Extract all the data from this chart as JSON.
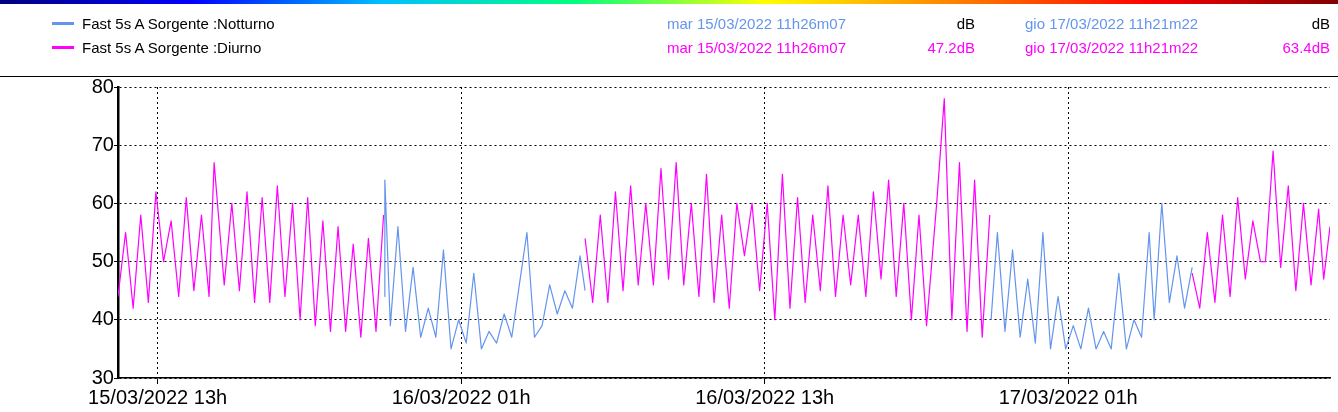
{
  "chart_data": {
    "type": "line",
    "ylim": [
      30,
      80
    ],
    "yticks": [
      30,
      40,
      50,
      60,
      70,
      80
    ],
    "xlim": [
      "2022-03-15T11:26",
      "2022-03-17T11:21"
    ],
    "xticks": [
      {
        "value": "2022-03-15T13:00",
        "label": "15/03/2022 13h"
      },
      {
        "value": "2022-03-16T01:00",
        "label": "16/03/2022 01h"
      },
      {
        "value": "2022-03-16T13:00",
        "label": "16/03/2022 13h"
      },
      {
        "value": "2022-03-17T01:00",
        "label": "17/03/2022 01h"
      }
    ],
    "grid": true,
    "legend": "top",
    "marker": "none",
    "line_style": "solid",
    "annotations": [
      "mar 15/03/2022 11h26m07",
      "dB",
      "gio 17/03/2022 11h21m22",
      "dB",
      "mar 15/03/2022 11h26m07",
      "47.2dB",
      "gio 17/03/2022 11h21m22",
      "63.4dB"
    ],
    "series": [
      {
        "name": "Fast 5s  A  Sorgente :Notturno",
        "color": "#6495ed",
        "x": [
          "2022-03-15T21:58",
          "2022-03-15T21:59",
          "2022-03-15T22:12",
          "2022-03-15T22:30",
          "2022-03-15T22:48",
          "2022-03-15T23:06",
          "2022-03-15T23:24",
          "2022-03-15T23:42",
          "2022-03-16T00:00",
          "2022-03-16T00:18",
          "2022-03-16T00:36",
          "2022-03-16T00:54",
          "2022-03-16T01:12",
          "2022-03-16T01:30",
          "2022-03-16T01:48",
          "2022-03-16T02:06",
          "2022-03-16T02:24",
          "2022-03-16T02:42",
          "2022-03-16T03:00",
          "2022-03-16T03:18",
          "2022-03-16T03:36",
          "2022-03-16T03:54",
          "2022-03-16T04:12",
          "2022-03-16T04:30",
          "2022-03-16T04:48",
          "2022-03-16T05:06",
          "2022-03-16T05:24",
          "2022-03-16T05:42",
          "2022-03-16T05:54",
          "2022-03-16T14:00",
          "2022-03-16T21:57",
          "2022-03-16T22:12",
          "2022-03-16T22:30",
          "2022-03-16T22:48",
          "2022-03-16T23:06",
          "2022-03-16T23:24",
          "2022-03-16T23:42",
          "2022-03-17T00:00",
          "2022-03-17T00:18",
          "2022-03-17T00:36",
          "2022-03-17T00:54",
          "2022-03-17T01:12",
          "2022-03-17T01:30",
          "2022-03-17T01:48",
          "2022-03-17T02:06",
          "2022-03-17T02:24",
          "2022-03-17T02:42",
          "2022-03-17T03:00",
          "2022-03-17T03:18",
          "2022-03-17T03:36",
          "2022-03-17T03:54",
          "2022-03-17T04:12",
          "2022-03-17T04:24",
          "2022-03-17T04:42",
          "2022-03-17T05:00",
          "2022-03-17T05:18",
          "2022-03-17T05:36",
          "2022-03-17T05:54"
        ],
        "values": [
          44,
          64,
          39,
          56,
          38,
          49,
          37,
          42,
          37,
          52,
          35,
          40,
          36,
          48,
          35,
          38,
          36,
          41,
          37,
          46,
          55,
          37,
          39,
          46,
          41,
          45,
          42,
          51,
          45,
          null,
          40,
          55,
          38,
          52,
          37,
          47,
          36,
          55,
          35,
          44,
          35,
          39,
          35,
          42,
          35,
          38,
          35,
          48,
          35,
          40,
          37,
          55,
          40,
          60,
          43,
          51,
          42,
          49
        ]
      },
      {
        "name": "Fast 5s  A  Sorgente :Diurno",
        "color": "#ff00ff",
        "x": [
          "2022-03-15T11:26",
          "2022-03-15T11:44",
          "2022-03-15T12:02",
          "2022-03-15T12:20",
          "2022-03-15T12:38",
          "2022-03-15T12:56",
          "2022-03-15T13:14",
          "2022-03-15T13:32",
          "2022-03-15T13:50",
          "2022-03-15T14:08",
          "2022-03-15T14:26",
          "2022-03-15T14:44",
          "2022-03-15T15:02",
          "2022-03-15T15:14",
          "2022-03-15T15:38",
          "2022-03-15T15:56",
          "2022-03-15T16:14",
          "2022-03-15T16:32",
          "2022-03-15T16:50",
          "2022-03-15T17:08",
          "2022-03-15T17:26",
          "2022-03-15T17:44",
          "2022-03-15T18:02",
          "2022-03-15T18:20",
          "2022-03-15T18:38",
          "2022-03-15T18:56",
          "2022-03-15T19:14",
          "2022-03-15T19:32",
          "2022-03-15T19:50",
          "2022-03-15T20:08",
          "2022-03-15T20:26",
          "2022-03-15T20:44",
          "2022-03-15T21:02",
          "2022-03-15T21:20",
          "2022-03-15T21:38",
          "2022-03-15T21:56",
          "2022-03-16T01:00",
          "2022-03-16T05:54",
          "2022-03-16T06:12",
          "2022-03-16T06:30",
          "2022-03-16T06:48",
          "2022-03-16T07:06",
          "2022-03-16T07:24",
          "2022-03-16T07:42",
          "2022-03-16T08:00",
          "2022-03-16T08:18",
          "2022-03-16T08:36",
          "2022-03-16T08:54",
          "2022-03-16T09:12",
          "2022-03-16T09:30",
          "2022-03-16T09:48",
          "2022-03-16T10:06",
          "2022-03-16T10:24",
          "2022-03-16T10:42",
          "2022-03-16T11:00",
          "2022-03-16T11:18",
          "2022-03-16T11:36",
          "2022-03-16T11:54",
          "2022-03-16T12:12",
          "2022-03-16T12:30",
          "2022-03-16T12:48",
          "2022-03-16T13:06",
          "2022-03-16T13:24",
          "2022-03-16T13:42",
          "2022-03-16T14:00",
          "2022-03-16T14:18",
          "2022-03-16T14:36",
          "2022-03-16T14:54",
          "2022-03-16T15:12",
          "2022-03-16T15:30",
          "2022-03-16T15:48",
          "2022-03-16T16:06",
          "2022-03-16T16:24",
          "2022-03-16T16:42",
          "2022-03-16T17:00",
          "2022-03-16T17:18",
          "2022-03-16T17:36",
          "2022-03-16T17:54",
          "2022-03-16T18:12",
          "2022-03-16T18:30",
          "2022-03-16T18:48",
          "2022-03-16T19:06",
          "2022-03-16T19:24",
          "2022-03-16T19:48",
          "2022-03-16T20:06",
          "2022-03-16T20:24",
          "2022-03-16T20:42",
          "2022-03-16T21:00",
          "2022-03-16T21:18",
          "2022-03-16T21:36",
          "2022-03-16T21:54",
          "2022-03-17T02:00",
          "2022-03-17T05:54",
          "2022-03-17T06:12",
          "2022-03-17T06:30",
          "2022-03-17T06:48",
          "2022-03-17T07:06",
          "2022-03-17T07:24",
          "2022-03-17T07:42",
          "2022-03-17T08:00",
          "2022-03-17T08:18",
          "2022-03-17T08:36",
          "2022-03-17T08:48",
          "2022-03-17T09:06",
          "2022-03-17T09:24",
          "2022-03-17T09:42",
          "2022-03-17T10:00",
          "2022-03-17T10:18",
          "2022-03-17T10:36",
          "2022-03-17T10:54",
          "2022-03-17T11:06",
          "2022-03-17T11:21"
        ],
        "values": [
          44,
          55,
          42,
          58,
          43,
          62,
          50,
          57,
          44,
          61,
          45,
          58,
          44,
          67,
          46,
          60,
          45,
          62,
          43,
          61,
          43,
          63,
          44,
          60,
          40,
          61,
          39,
          57,
          38,
          56,
          38,
          53,
          37,
          54,
          38,
          58,
          null,
          54,
          43,
          58,
          43,
          62,
          45,
          63,
          46,
          60,
          46,
          66,
          47,
          67,
          46,
          60,
          44,
          65,
          43,
          58,
          42,
          60,
          51,
          60,
          45,
          60,
          40,
          65,
          42,
          61,
          43,
          58,
          45,
          63,
          44,
          58,
          46,
          58,
          44,
          62,
          47,
          64,
          44,
          60,
          40,
          58,
          39,
          60,
          78,
          40,
          67,
          38,
          64,
          37,
          58,
          null,
          48,
          42,
          55,
          43,
          58,
          44,
          61,
          47,
          57,
          50,
          50,
          69,
          49,
          63,
          45,
          60,
          46,
          59,
          47,
          56
        ]
      }
    ]
  }
}
